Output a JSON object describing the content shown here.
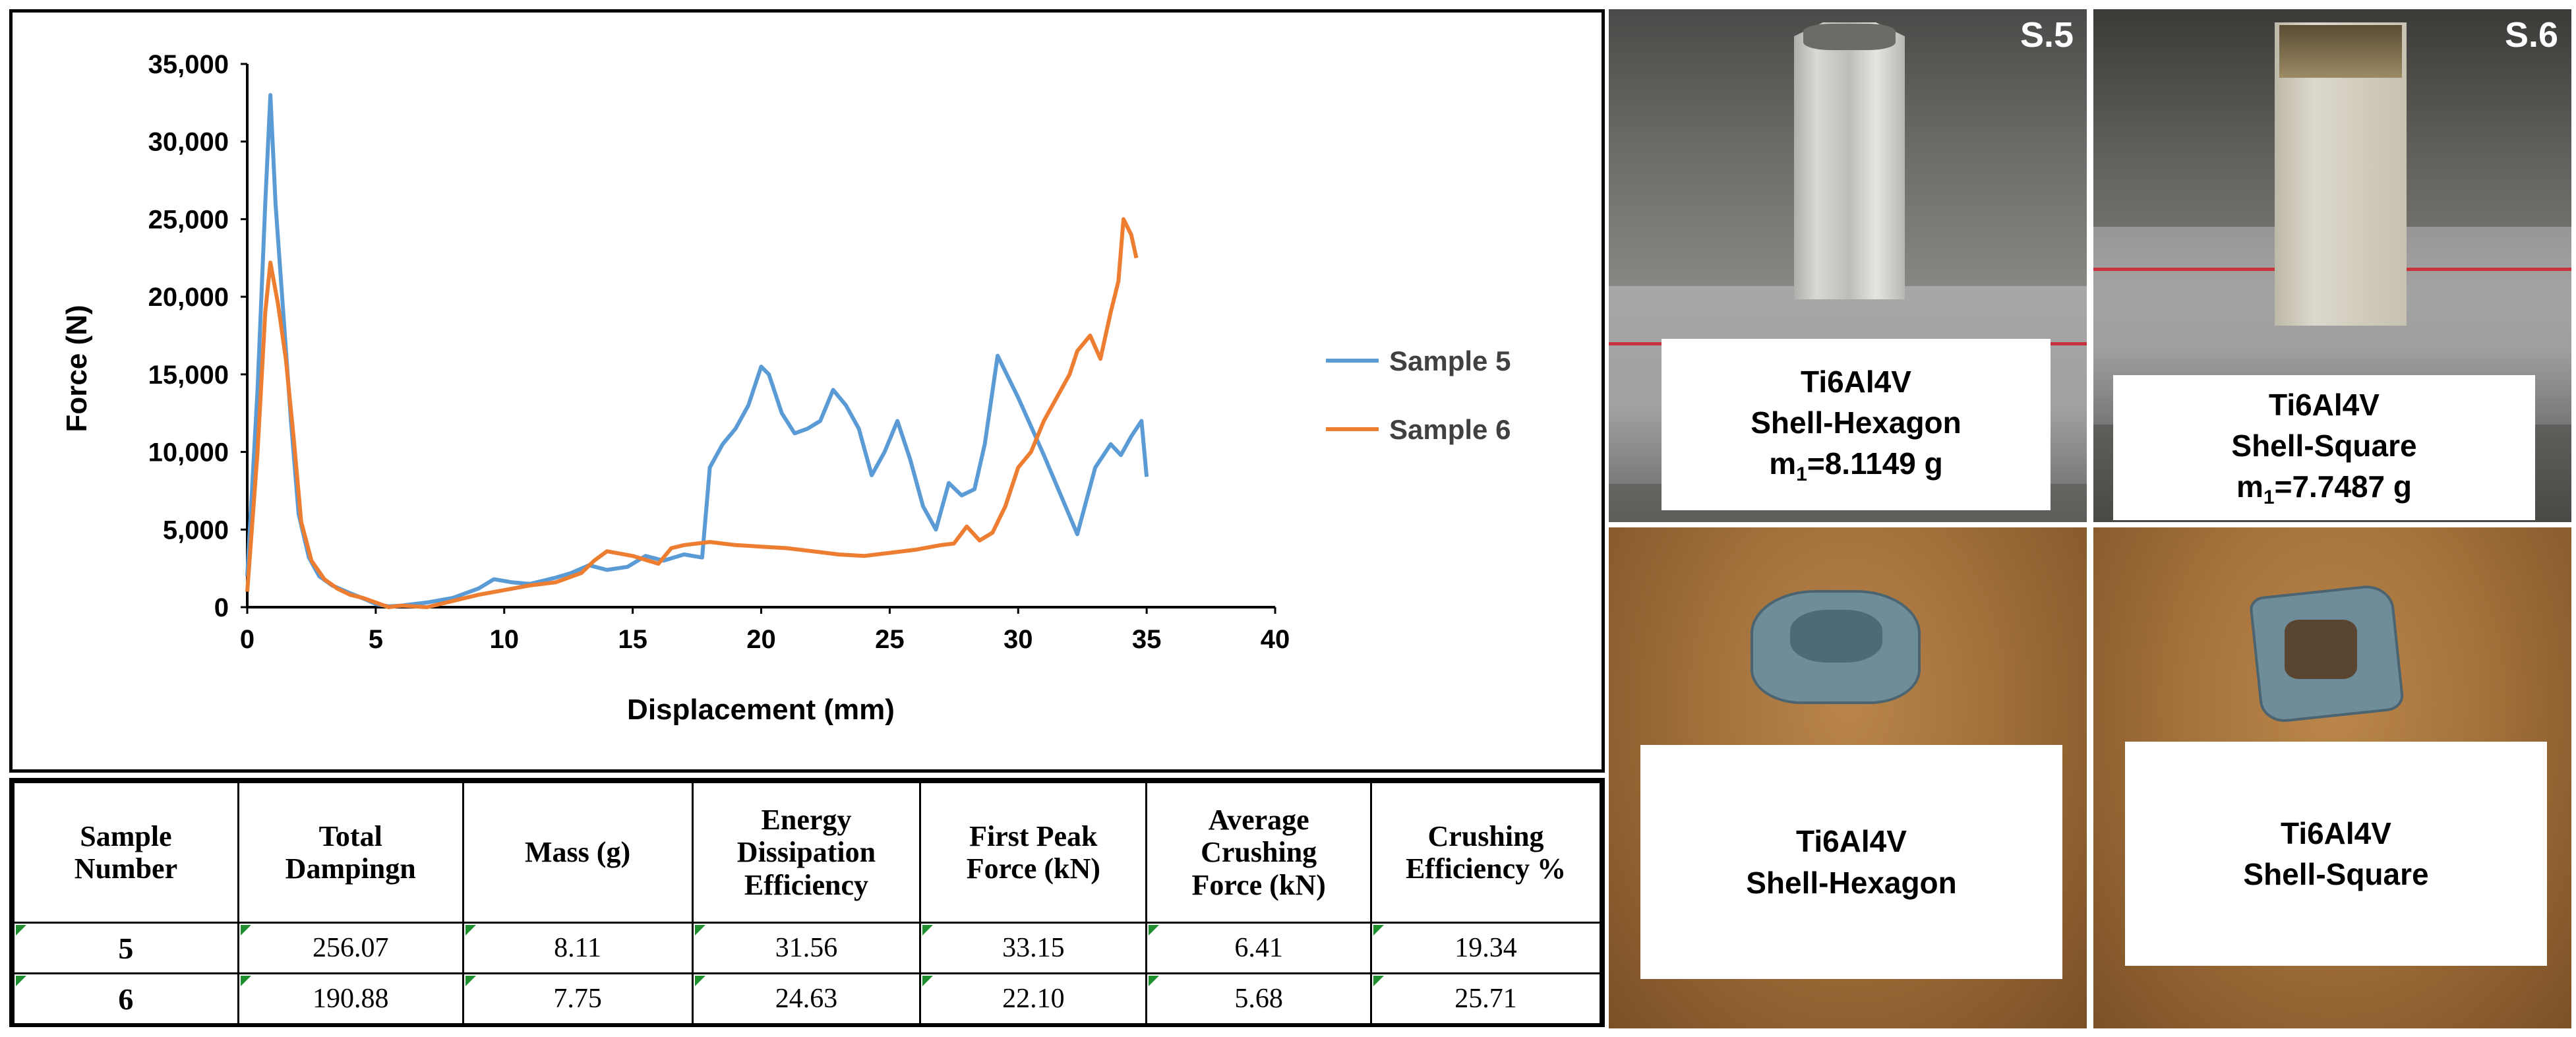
{
  "chart_data": {
    "type": "line",
    "title": "",
    "xlabel": "Displacement (mm)",
    "ylabel": "Force (N)",
    "xlim": [
      0,
      40
    ],
    "ylim": [
      0,
      35000
    ],
    "xticks": [
      0,
      5,
      10,
      15,
      20,
      25,
      30,
      35,
      40
    ],
    "yticks": [
      0,
      5000,
      10000,
      15000,
      20000,
      25000,
      30000,
      35000
    ],
    "ytick_labels": [
      "0",
      "5,000",
      "10,000",
      "15,000",
      "20,000",
      "25,000",
      "30,000",
      "35,000"
    ],
    "grid": false,
    "legend_position": "right",
    "series": [
      {
        "name": "Sample 5",
        "color": "#5B9BD5",
        "x": [
          0,
          0.4,
          0.7,
          0.9,
          1.1,
          1.4,
          1.7,
          2.0,
          2.4,
          2.8,
          3.3,
          4.0,
          4.6,
          5.0,
          5.5,
          6.0,
          7.0,
          8.0,
          9.0,
          9.6,
          10.3,
          11.0,
          12.0,
          12.6,
          13.3,
          14.0,
          14.8,
          15.5,
          16.2,
          17.0,
          17.7,
          18.0,
          18.5,
          19.0,
          19.5,
          20.0,
          20.3,
          20.8,
          21.3,
          21.8,
          22.3,
          22.8,
          23.3,
          23.8,
          24.3,
          24.8,
          25.3,
          25.8,
          26.3,
          26.8,
          27.3,
          27.8,
          28.3,
          28.7,
          29.2,
          30.0,
          31.0,
          32.3,
          33.0,
          33.6,
          34.0,
          34.4,
          34.8,
          35.0
        ],
        "y": [
          2000,
          14000,
          26000,
          33000,
          26000,
          19000,
          12000,
          6000,
          3200,
          2000,
          1400,
          900,
          500,
          200,
          50,
          100,
          300,
          600,
          1200,
          1800,
          1600,
          1500,
          1900,
          2200,
          2700,
          2400,
          2600,
          3300,
          3000,
          3400,
          3200,
          9000,
          10500,
          11500,
          13000,
          15500,
          15000,
          12500,
          11200,
          11500,
          12000,
          14000,
          13000,
          11500,
          8500,
          10000,
          12000,
          9500,
          6500,
          5000,
          8000,
          7200,
          7600,
          10500,
          16200,
          13500,
          9800,
          4700,
          9000,
          10500,
          9800,
          11000,
          12000,
          8400
        ]
      },
      {
        "name": "Sample 6",
        "color": "#ED7D31",
        "x": [
          0,
          0.4,
          0.7,
          0.9,
          1.2,
          1.5,
          1.8,
          2.1,
          2.5,
          3.0,
          3.5,
          4.0,
          4.5,
          5.0,
          5.5,
          6.0,
          7.0,
          8.0,
          9.0,
          10.0,
          11.0,
          12.0,
          13.0,
          13.5,
          14.0,
          15.0,
          16.0,
          16.5,
          17.0,
          18.0,
          19.0,
          20.0,
          21.0,
          22.0,
          23.0,
          24.0,
          25.0,
          26.0,
          27.0,
          27.5,
          28.0,
          28.5,
          29.0,
          29.5,
          30.0,
          30.5,
          31.0,
          31.5,
          32.0,
          32.3,
          32.8,
          33.2,
          33.6,
          33.9,
          34.1,
          34.4,
          34.6
        ],
        "y": [
          1000,
          10000,
          19000,
          22200,
          19500,
          16000,
          11000,
          5500,
          3000,
          1800,
          1200,
          800,
          600,
          300,
          0,
          100,
          0,
          400,
          800,
          1100,
          1400,
          1600,
          2200,
          3000,
          3600,
          3300,
          2800,
          3800,
          4000,
          4200,
          4000,
          3900,
          3800,
          3600,
          3400,
          3300,
          3500,
          3700,
          4000,
          4100,
          5200,
          4300,
          4800,
          6500,
          9000,
          10000,
          12000,
          13500,
          15000,
          16500,
          17500,
          16000,
          19000,
          21000,
          25000,
          24000,
          22500
        ]
      }
    ]
  },
  "table": {
    "headers": [
      "Sample Number",
      "Total Dampingn",
      "Mass (g)",
      "Energy Dissipation Efficiency",
      "First Peak Force (kN)",
      "Average Crushing Force (kN)",
      "Crushing Efficiency %"
    ],
    "header_lines": [
      [
        "Sample",
        "Number"
      ],
      [
        "Total",
        "Dampingn"
      ],
      [
        "Mass (g)"
      ],
      [
        "Energy",
        "Dissipation",
        "Efficiency"
      ],
      [
        "First Peak",
        "Force (kN)"
      ],
      [
        "Average",
        "Crushing",
        "Force (kN)"
      ],
      [
        "Crushing",
        "Efficiency %"
      ]
    ],
    "rows": [
      [
        "5",
        "256.07",
        "8.11",
        "31.56",
        "33.15",
        "6.41",
        "19.34"
      ],
      [
        "6",
        "190.88",
        "7.75",
        "24.63",
        "22.10",
        "5.68",
        "25.71"
      ]
    ]
  },
  "panels": {
    "s5_before": {
      "tag": "S.5",
      "line1": "Ti6Al4V",
      "line2": "Shell-Hexagon",
      "mass_prefix": "m",
      "mass_sub": "1",
      "mass_value": "=8.1149 g"
    },
    "s6_before": {
      "tag": "S.6",
      "line1": "Ti6Al4V",
      "line2": "Shell-Square",
      "mass_prefix": "m",
      "mass_sub": "1",
      "mass_value": "=7.7487 g"
    },
    "s5_after": {
      "line1": "Ti6Al4V",
      "line2": "Shell-Hexagon"
    },
    "s6_after": {
      "line1": "Ti6Al4V",
      "line2": "Shell-Square"
    }
  }
}
